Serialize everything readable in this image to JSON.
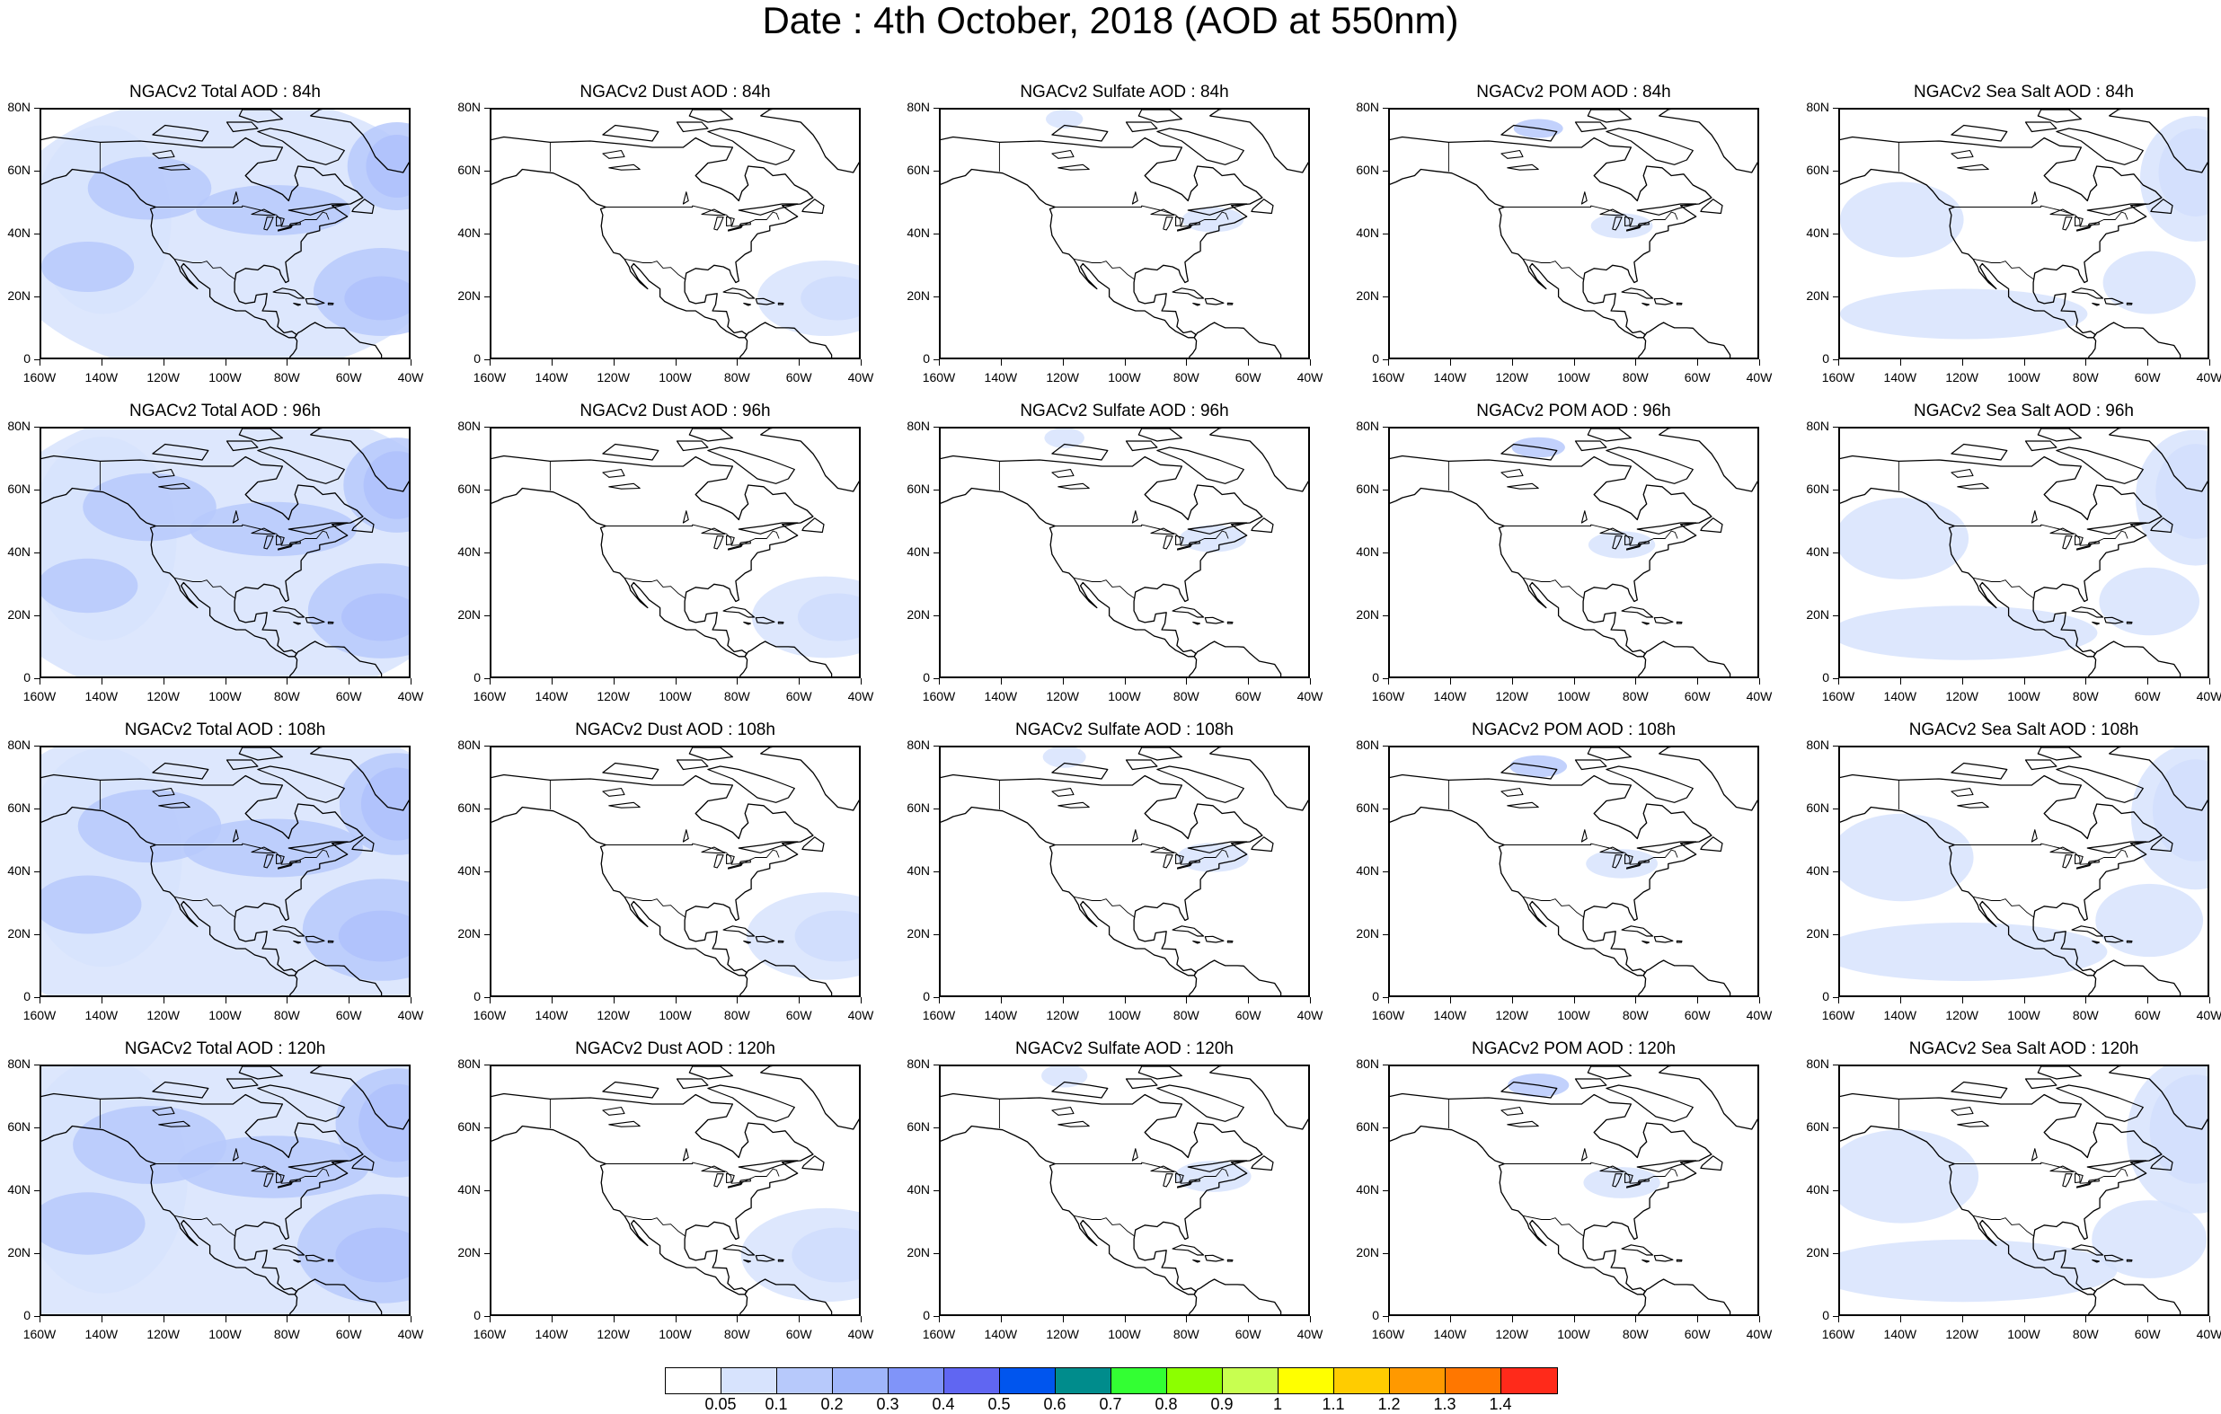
{
  "title": "Date : 4th October, 2018 (AOD at 550nm)",
  "y_ticks": [
    "0",
    "20N",
    "40N",
    "60N",
    "80N"
  ],
  "x_ticks": [
    "160W",
    "140W",
    "120W",
    "100W",
    "80W",
    "60W",
    "40W"
  ],
  "map_extent": {
    "lon_min": -160,
    "lon_max": -40,
    "lat_min": 0,
    "lat_max": 80
  },
  "panels": [
    [
      "NGACv2 Total AOD : 84h",
      "NGACv2 Dust AOD : 84h",
      "NGACv2 Sulfate AOD : 84h",
      "NGACv2 POM AOD : 84h",
      "NGACv2 Sea Salt AOD : 84h"
    ],
    [
      "NGACv2 Total AOD : 96h",
      "NGACv2 Dust AOD : 96h",
      "NGACv2 Sulfate AOD : 96h",
      "NGACv2 POM AOD : 96h",
      "NGACv2 Sea Salt AOD : 96h"
    ],
    [
      "NGACv2 Total AOD : 108h",
      "NGACv2 Dust AOD : 108h",
      "NGACv2 Sulfate AOD : 108h",
      "NGACv2 POM AOD : 108h",
      "NGACv2 Sea Salt AOD : 108h"
    ],
    [
      "NGACv2 Total AOD : 120h",
      "NGACv2 Dust AOD : 120h",
      "NGACv2 Sulfate AOD : 120h",
      "NGACv2 POM AOD : 120h",
      "NGACv2 Sea Salt  AOD : 120h"
    ]
  ],
  "colorbar": {
    "colors": [
      "#ffffff",
      "#d7e3fd",
      "#b7c9fb",
      "#9fb5fa",
      "#8094f9",
      "#6066f2",
      "#0055ee",
      "#008c8c",
      "#33ff33",
      "#8cff00",
      "#c8ff50",
      "#ffff00",
      "#ffcc00",
      "#ff9900",
      "#ff7700",
      "#ff2a1a"
    ],
    "labels": [
      "0.05",
      "0.1",
      "0.2",
      "0.3",
      "0.4",
      "0.5",
      "0.6",
      "0.7",
      "0.8",
      "0.9",
      "1",
      "1.1",
      "1.2",
      "1.3",
      "1.4"
    ]
  }
}
